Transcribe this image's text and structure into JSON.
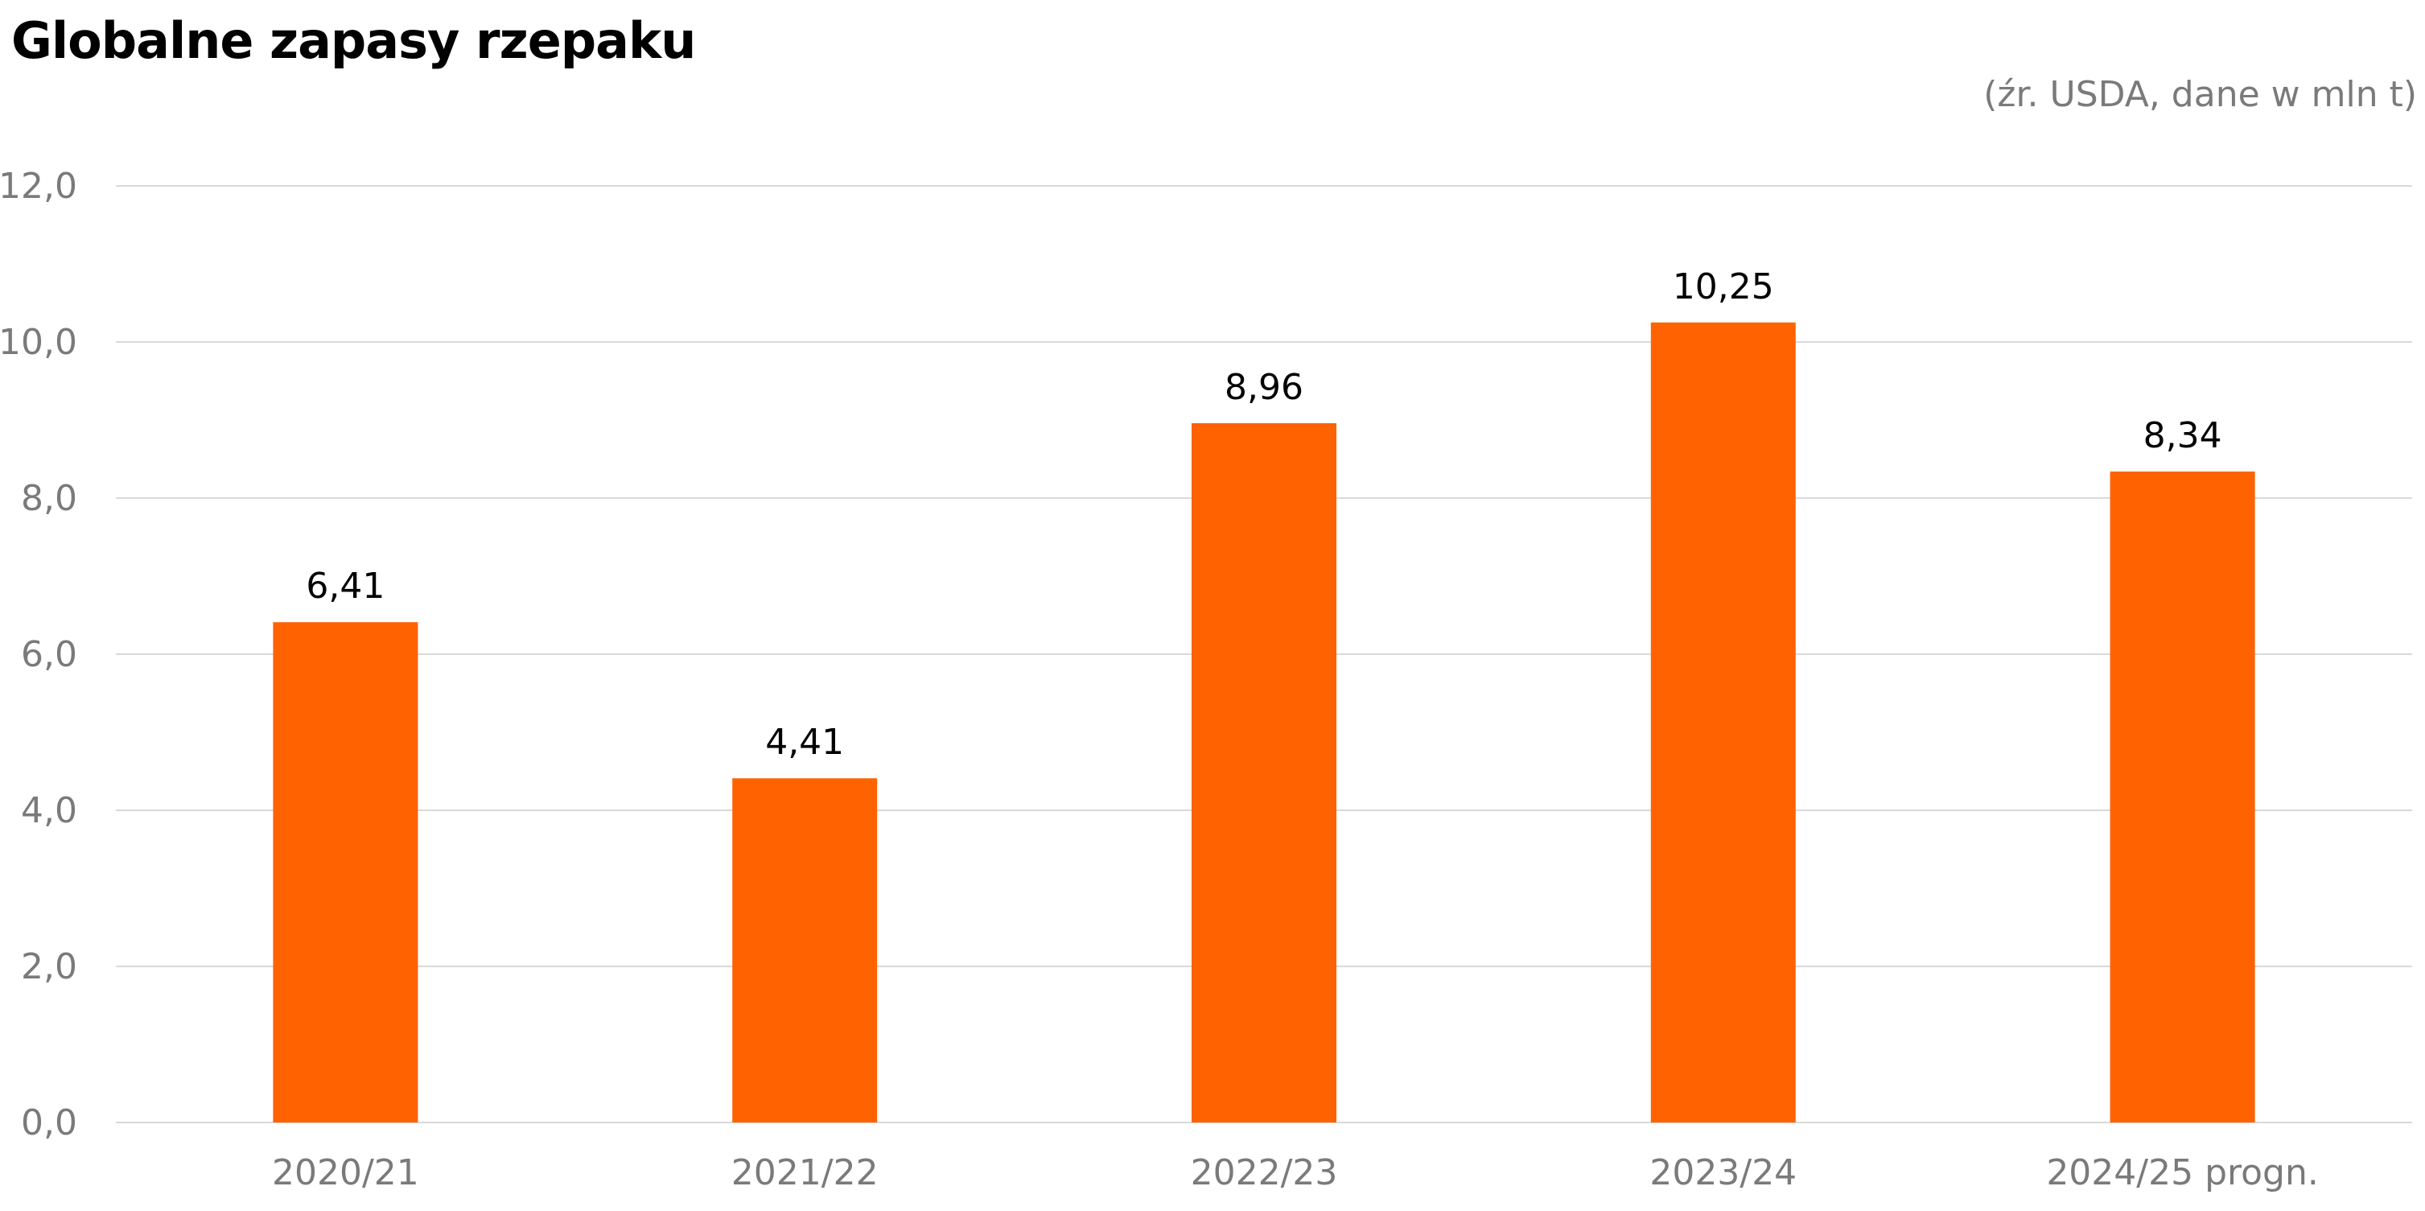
{
  "chart_data": {
    "type": "bar",
    "title": "Globalne zapasy rzepaku",
    "subtitle": "(źr. USDA, dane w mln t)",
    "categories": [
      "2020/21",
      "2021/22",
      "2022/23",
      "2023/24",
      "2024/25 progn."
    ],
    "series": [
      {
        "values": [
          6.41,
          4.41,
          8.96,
          10.25,
          8.34
        ],
        "value_labels": [
          "6,41",
          "4,41",
          "8,96",
          "10,25",
          "8,34"
        ],
        "color": "#FF6200"
      }
    ],
    "ylim": [
      0,
      12
    ],
    "yticks": [
      0,
      2,
      4,
      6,
      8,
      10,
      12
    ],
    "ytick_labels": [
      "0,0",
      "2,0",
      "4,0",
      "6,0",
      "8,0",
      "10,0",
      "12,0"
    ],
    "grid": true,
    "gridline_color": "#d9d9d9",
    "legend": "none"
  }
}
